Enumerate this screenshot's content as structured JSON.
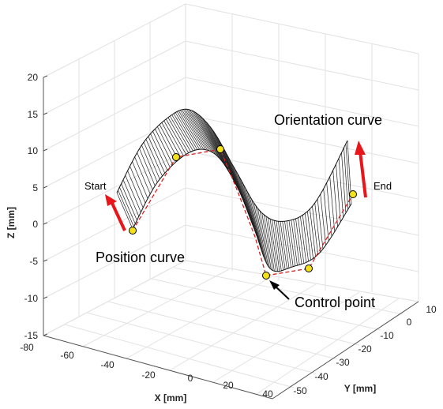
{
  "figure": {
    "axes": {
      "x": {
        "label": "X [mm]",
        "ticks": [
          "-60",
          "-40",
          "-20",
          "0",
          "20",
          "40"
        ]
      },
      "y": {
        "label": "Y [mm]",
        "ticks": [
          "-50",
          "-40",
          "-30",
          "-20",
          "-10",
          "0",
          "10"
        ]
      },
      "z": {
        "label": "Z [mm]",
        "ticks": [
          "20",
          "15",
          "10",
          "5",
          "0",
          "-5",
          "-10",
          "-15"
        ]
      },
      "extra_tick": "-80"
    },
    "annotations": {
      "start": "Start",
      "end": "End",
      "position_curve": "Position curve",
      "orientation_curve": "Orientation curve",
      "control_point": "Control point"
    },
    "colors": {
      "arrow": "#e8161b",
      "control_polygon": "#d42020",
      "control_point_fill": "#f3e119",
      "surface_line": "#222222"
    }
  }
}
